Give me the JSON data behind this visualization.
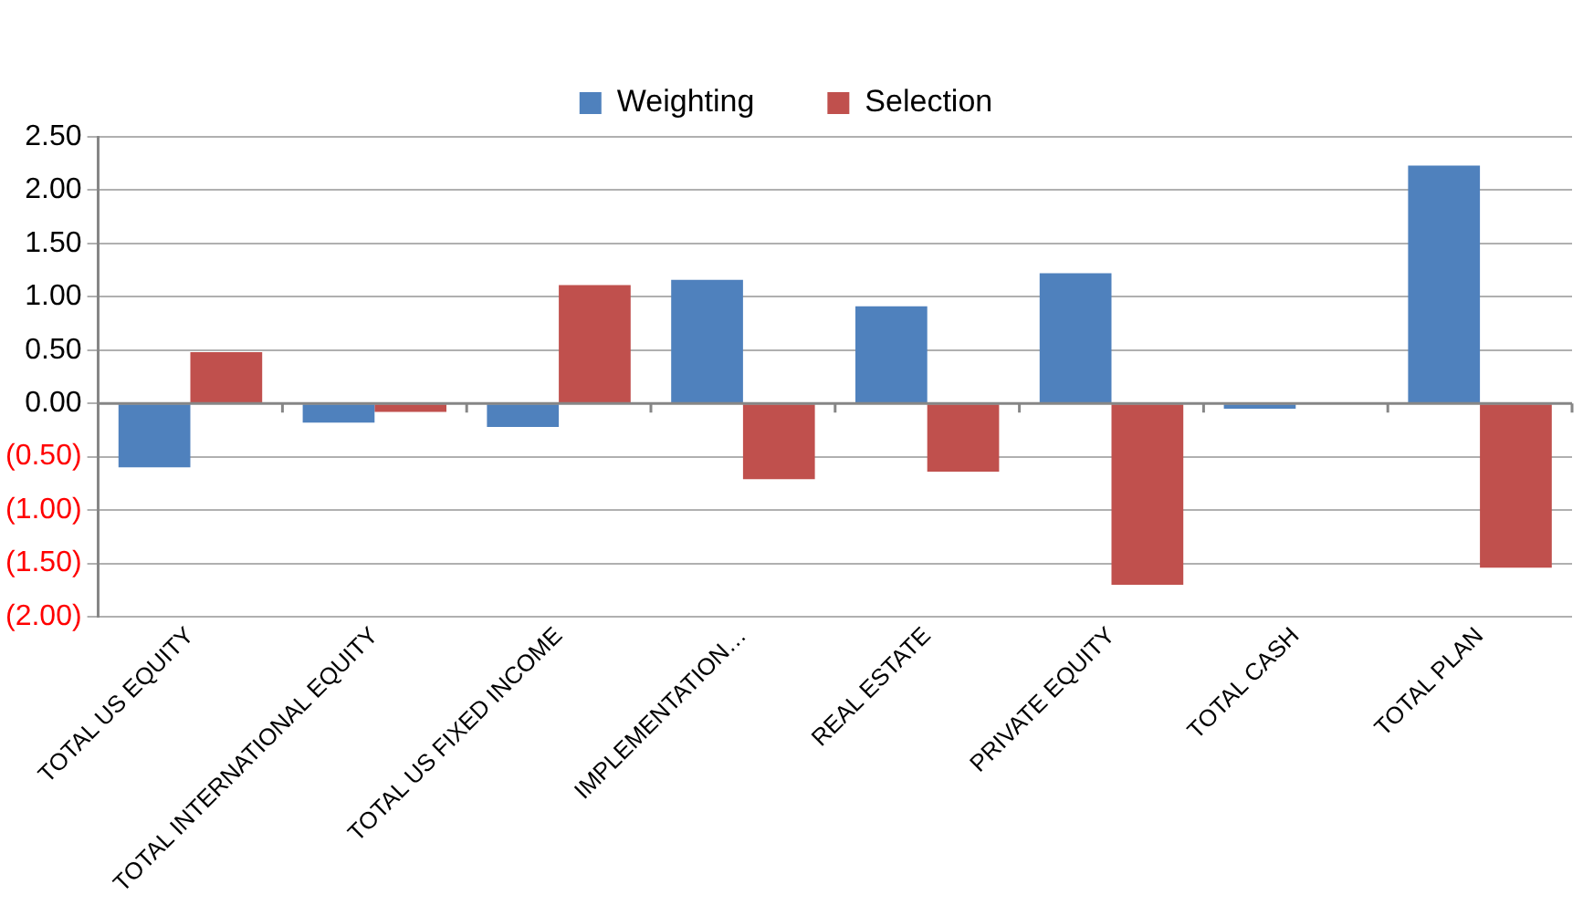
{
  "chart_data": {
    "type": "bar",
    "categories": [
      "TOTAL US EQUITY",
      "TOTAL INTERNATIONAL EQUITY",
      "TOTAL US FIXED INCOME",
      "IMPLEMENTATION…",
      "REAL ESTATE",
      "PRIVATE EQUITY",
      "TOTAL CASH",
      "TOTAL PLAN"
    ],
    "series": [
      {
        "name": "Weighting",
        "color": "#4f81bd",
        "values": [
          -0.6,
          -0.18,
          -0.22,
          1.16,
          0.91,
          1.22,
          -0.05,
          2.23
        ]
      },
      {
        "name": "Selection",
        "color": "#c0504d",
        "values": [
          0.48,
          -0.08,
          1.11,
          -0.71,
          -0.64,
          -1.7,
          0,
          -1.54
        ]
      }
    ],
    "ylim": [
      -2,
      2.5
    ],
    "yticks": [
      {
        "value": -2,
        "label": "(2.00)"
      },
      {
        "value": -1.5,
        "label": "(1.50)"
      },
      {
        "value": -1,
        "label": "(1.00)"
      },
      {
        "value": -0.5,
        "label": "(0.50)"
      },
      {
        "value": 0,
        "label": "0.00"
      },
      {
        "value": 0.5,
        "label": "0.50"
      },
      {
        "value": 1,
        "label": "1.00"
      },
      {
        "value": 1.5,
        "label": "1.50"
      },
      {
        "value": 2,
        "label": "2.00"
      },
      {
        "value": 2.5,
        "label": "2.50"
      }
    ],
    "grid": "y",
    "legend": "top"
  }
}
